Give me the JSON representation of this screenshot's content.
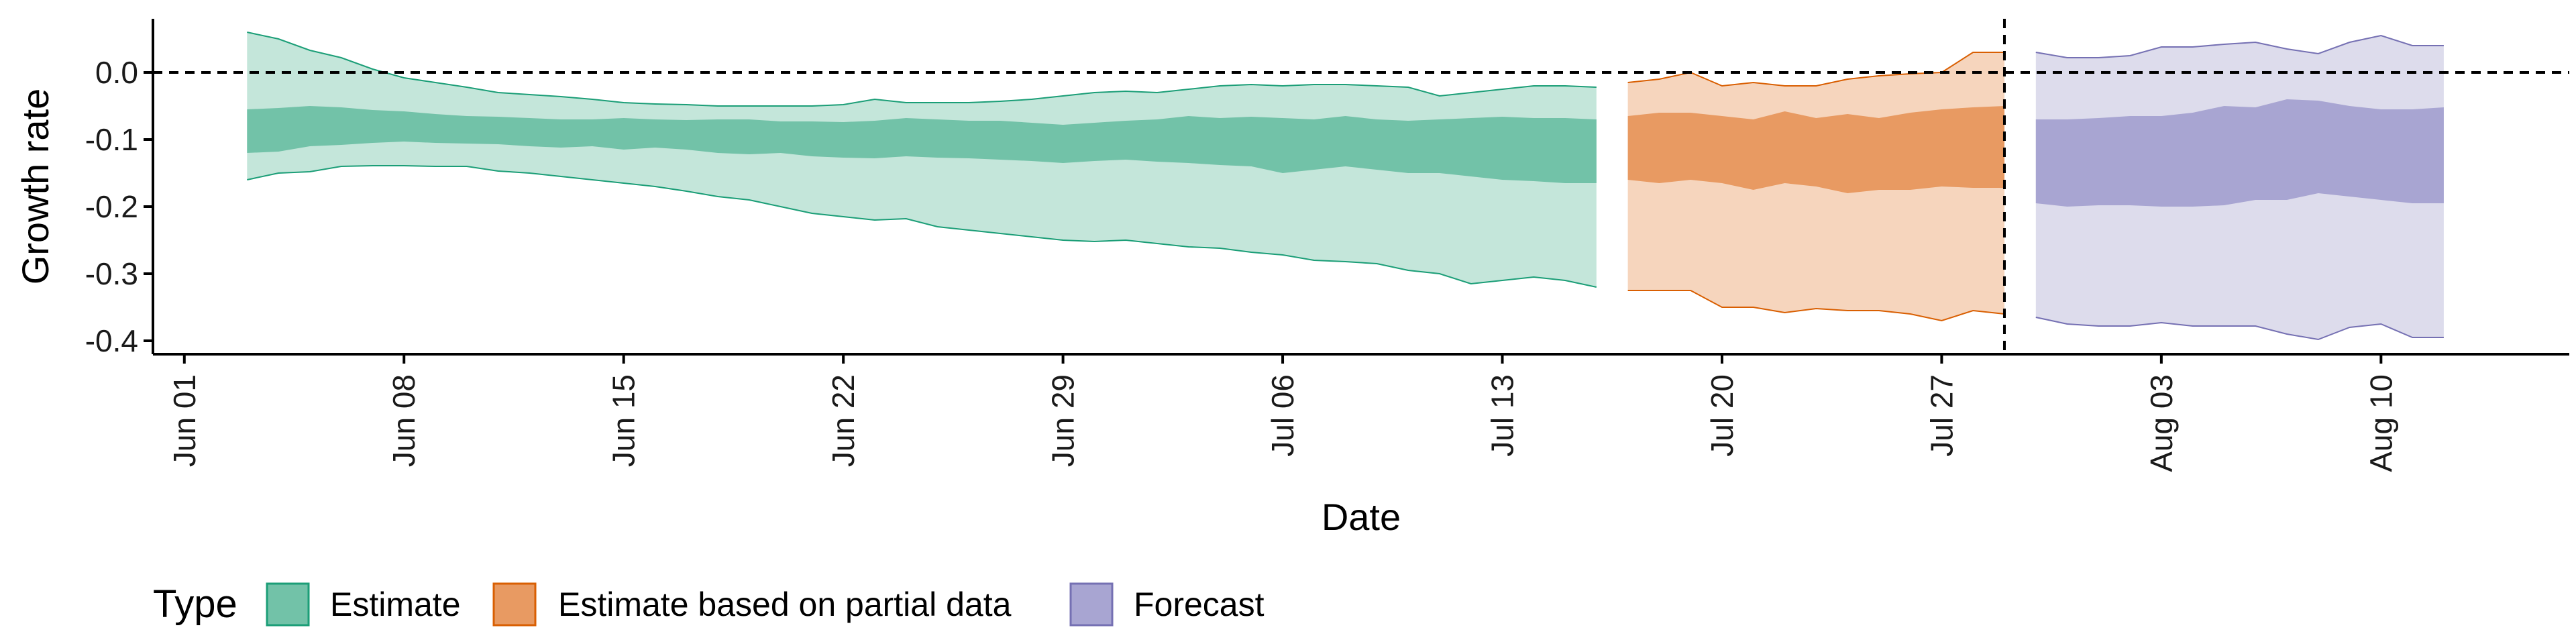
{
  "chart_data": {
    "type": "area",
    "xlabel": "Date",
    "ylabel": "Growth rate",
    "xlim": [
      "2020-05-31",
      "2020-08-16"
    ],
    "ylim": [
      -0.42,
      0.08
    ],
    "y_ticks": [
      0.0,
      -0.1,
      -0.2,
      -0.3,
      -0.4
    ],
    "y_tick_labels": [
      "0.0",
      "-0.1",
      "-0.2",
      "-0.3",
      "-0.4"
    ],
    "x_ticks": [
      "2020-06-01",
      "2020-06-08",
      "2020-06-15",
      "2020-06-22",
      "2020-06-29",
      "2020-07-06",
      "2020-07-13",
      "2020-07-20",
      "2020-07-27",
      "2020-08-03",
      "2020-08-10"
    ],
    "x_tick_labels": [
      "Jun 01",
      "Jun 08",
      "Jun 15",
      "Jun 22",
      "Jun 29",
      "Jul 06",
      "Jul 13",
      "Jul 20",
      "Jul 27",
      "Aug 03",
      "Aug 10"
    ],
    "reference_lines": {
      "horizontal_y": 0.0,
      "vertical_x": "2020-07-29",
      "style": "dashed"
    },
    "grid": false,
    "legend": {
      "title": "Type",
      "position": "bottom-left",
      "entries": [
        "Estimate",
        "Estimate based on partial data",
        "Forecast"
      ]
    },
    "colors": {
      "Estimate": {
        "inner": "#72c2a8",
        "outer": "#c4e6da",
        "line": "#1b9e77"
      },
      "Estimate based on partial data": {
        "inner": "#e89a62",
        "outer": "#f6d5bd",
        "line": "#d95f02"
      },
      "Forecast": {
        "inner": "#a8a5d2",
        "outer": "#dddcec",
        "line": "#7570b3"
      }
    },
    "series": [
      {
        "name": "Estimate",
        "x": [
          "2020-06-03",
          "2020-06-04",
          "2020-06-05",
          "2020-06-06",
          "2020-06-07",
          "2020-06-08",
          "2020-06-09",
          "2020-06-10",
          "2020-06-11",
          "2020-06-12",
          "2020-06-13",
          "2020-06-14",
          "2020-06-15",
          "2020-06-16",
          "2020-06-17",
          "2020-06-18",
          "2020-06-19",
          "2020-06-20",
          "2020-06-21",
          "2020-06-22",
          "2020-06-23",
          "2020-06-24",
          "2020-06-25",
          "2020-06-26",
          "2020-06-27",
          "2020-06-28",
          "2020-06-29",
          "2020-06-30",
          "2020-07-01",
          "2020-07-02",
          "2020-07-03",
          "2020-07-04",
          "2020-07-05",
          "2020-07-06",
          "2020-07-07",
          "2020-07-08",
          "2020-07-09",
          "2020-07-10",
          "2020-07-11",
          "2020-07-12",
          "2020-07-13",
          "2020-07-14",
          "2020-07-15",
          "2020-07-16"
        ],
        "lower90": [
          -0.16,
          -0.15,
          -0.148,
          -0.14,
          -0.139,
          -0.139,
          -0.14,
          -0.14,
          -0.147,
          -0.15,
          -0.155,
          -0.16,
          -0.165,
          -0.17,
          -0.177,
          -0.185,
          -0.19,
          -0.2,
          -0.21,
          -0.215,
          -0.22,
          -0.218,
          -0.23,
          -0.235,
          -0.24,
          -0.245,
          -0.25,
          -0.252,
          -0.25,
          -0.255,
          -0.26,
          -0.262,
          -0.268,
          -0.272,
          -0.28,
          -0.282,
          -0.285,
          -0.295,
          -0.3,
          -0.315,
          -0.31,
          -0.305,
          -0.31,
          -0.32
        ],
        "lower50": [
          -0.12,
          -0.118,
          -0.11,
          -0.108,
          -0.105,
          -0.103,
          -0.105,
          -0.106,
          -0.107,
          -0.11,
          -0.112,
          -0.11,
          -0.115,
          -0.112,
          -0.115,
          -0.12,
          -0.122,
          -0.12,
          -0.125,
          -0.127,
          -0.128,
          -0.125,
          -0.127,
          -0.128,
          -0.13,
          -0.132,
          -0.135,
          -0.132,
          -0.13,
          -0.133,
          -0.135,
          -0.138,
          -0.14,
          -0.15,
          -0.145,
          -0.14,
          -0.145,
          -0.15,
          -0.15,
          -0.155,
          -0.16,
          -0.162,
          -0.165,
          -0.165
        ],
        "upper50": [
          -0.055,
          -0.053,
          -0.05,
          -0.052,
          -0.056,
          -0.058,
          -0.062,
          -0.065,
          -0.066,
          -0.068,
          -0.07,
          -0.07,
          -0.068,
          -0.07,
          -0.071,
          -0.07,
          -0.07,
          -0.073,
          -0.073,
          -0.074,
          -0.072,
          -0.068,
          -0.07,
          -0.072,
          -0.072,
          -0.075,
          -0.078,
          -0.075,
          -0.072,
          -0.07,
          -0.065,
          -0.068,
          -0.066,
          -0.068,
          -0.07,
          -0.065,
          -0.07,
          -0.072,
          -0.07,
          -0.068,
          -0.066,
          -0.068,
          -0.068,
          -0.07
        ],
        "upper90": [
          0.06,
          0.05,
          0.033,
          0.022,
          0.005,
          -0.008,
          -0.015,
          -0.022,
          -0.03,
          -0.033,
          -0.036,
          -0.04,
          -0.045,
          -0.047,
          -0.048,
          -0.05,
          -0.05,
          -0.05,
          -0.05,
          -0.048,
          -0.04,
          -0.045,
          -0.045,
          -0.045,
          -0.043,
          -0.04,
          -0.035,
          -0.03,
          -0.028,
          -0.03,
          -0.025,
          -0.02,
          -0.018,
          -0.02,
          -0.018,
          -0.018,
          -0.02,
          -0.022,
          -0.035,
          -0.03,
          -0.025,
          -0.02,
          -0.02,
          -0.022
        ]
      },
      {
        "name": "Estimate based on partial data",
        "x": [
          "2020-07-17",
          "2020-07-18",
          "2020-07-19",
          "2020-07-20",
          "2020-07-21",
          "2020-07-22",
          "2020-07-23",
          "2020-07-24",
          "2020-07-25",
          "2020-07-26",
          "2020-07-27",
          "2020-07-28",
          "2020-07-29"
        ],
        "lower90": [
          -0.325,
          -0.325,
          -0.325,
          -0.35,
          -0.35,
          -0.358,
          -0.352,
          -0.355,
          -0.355,
          -0.36,
          -0.37,
          -0.355,
          -0.36
        ],
        "lower50": [
          -0.16,
          -0.165,
          -0.16,
          -0.165,
          -0.175,
          -0.165,
          -0.17,
          -0.18,
          -0.175,
          -0.175,
          -0.17,
          -0.172,
          -0.172
        ],
        "upper50": [
          -0.065,
          -0.06,
          -0.06,
          -0.065,
          -0.07,
          -0.058,
          -0.068,
          -0.062,
          -0.068,
          -0.06,
          -0.055,
          -0.052,
          -0.05
        ],
        "upper90": [
          -0.015,
          -0.01,
          0.0,
          -0.02,
          -0.015,
          -0.02,
          -0.02,
          -0.01,
          -0.005,
          -0.002,
          0.0,
          0.03,
          0.03
        ]
      },
      {
        "name": "Forecast",
        "x": [
          "2020-07-30",
          "2020-07-31",
          "2020-08-01",
          "2020-08-02",
          "2020-08-03",
          "2020-08-04",
          "2020-08-05",
          "2020-08-06",
          "2020-08-07",
          "2020-08-08",
          "2020-08-09",
          "2020-08-10",
          "2020-08-11",
          "2020-08-12"
        ],
        "lower90": [
          -0.365,
          -0.375,
          -0.378,
          -0.378,
          -0.373,
          -0.378,
          -0.378,
          -0.378,
          -0.39,
          -0.398,
          -0.38,
          -0.375,
          -0.395,
          -0.395
        ],
        "lower50": [
          -0.195,
          -0.2,
          -0.198,
          -0.198,
          -0.2,
          -0.2,
          -0.198,
          -0.19,
          -0.19,
          -0.18,
          -0.185,
          -0.19,
          -0.195,
          -0.195
        ],
        "upper50": [
          -0.07,
          -0.07,
          -0.068,
          -0.065,
          -0.065,
          -0.06,
          -0.05,
          -0.052,
          -0.04,
          -0.042,
          -0.05,
          -0.055,
          -0.055,
          -0.052
        ],
        "upper90": [
          0.03,
          0.022,
          0.022,
          0.025,
          0.038,
          0.038,
          0.042,
          0.045,
          0.035,
          0.028,
          0.045,
          0.055,
          0.04,
          0.04
        ]
      }
    ]
  }
}
